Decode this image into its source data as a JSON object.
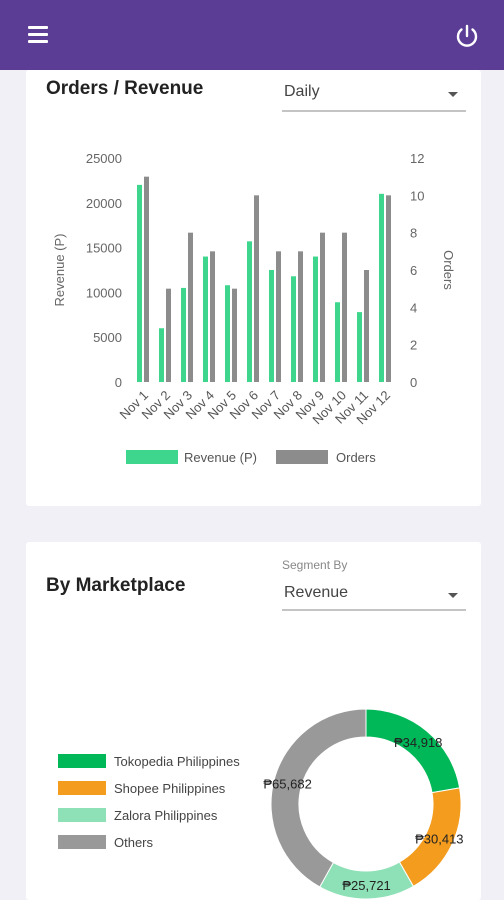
{
  "header": {
    "menu_icon": "hamburger-menu-icon",
    "power_icon": "power-icon"
  },
  "orders_card": {
    "title": "Orders / Revenue",
    "period_select": {
      "value": "Daily"
    }
  },
  "chart_data": [
    {
      "type": "bar",
      "categories": [
        "Nov 1",
        "Nov 2",
        "Nov 3",
        "Nov 4",
        "Nov 5",
        "Nov 6",
        "Nov 7",
        "Nov 8",
        "Nov 9",
        "Nov 10",
        "Nov 11",
        "Nov 12"
      ],
      "series": [
        {
          "name": "Revenue (P)",
          "axis": "left",
          "color": "#3dd68c",
          "values": [
            22000,
            6000,
            10500,
            14000,
            10800,
            15700,
            12500,
            11800,
            14000,
            8900,
            7800,
            21000
          ]
        },
        {
          "name": "Orders",
          "axis": "right",
          "color": "#8c8c8c",
          "values": [
            11,
            5,
            8,
            7,
            5,
            10,
            7,
            7,
            8,
            8,
            6,
            10
          ]
        }
      ],
      "ylabel": "Revenue (P)",
      "y2label": "Orders",
      "ylim": [
        0,
        25000
      ],
      "y2lim": [
        0,
        12
      ],
      "yticks": [
        "0",
        "5000",
        "10000",
        "15000",
        "20000",
        "25000"
      ],
      "y2ticks": [
        "0",
        "2",
        "4",
        "6",
        "8",
        "10",
        "12"
      ],
      "legend_position": "bottom"
    },
    {
      "type": "pie",
      "variant": "donut",
      "slices": [
        {
          "label": "Tokopedia Philippines",
          "value": 34918,
          "display": "₱34,918",
          "color": "#00b857"
        },
        {
          "label": "Shopee Philippines",
          "value": 30413,
          "display": "₱30,413",
          "color": "#f39c1e"
        },
        {
          "label": "Zalora Philippines",
          "value": 25721,
          "display": "₱25,721",
          "color": "#8ee0b6"
        },
        {
          "label": "Others",
          "value": 65682,
          "display": "₱65,682",
          "color": "#999999"
        }
      ],
      "legend_position": "left"
    }
  ],
  "marketplace_card": {
    "title": "By Marketplace",
    "segment_label": "Segment By",
    "segment_select": {
      "value": "Revenue"
    }
  }
}
